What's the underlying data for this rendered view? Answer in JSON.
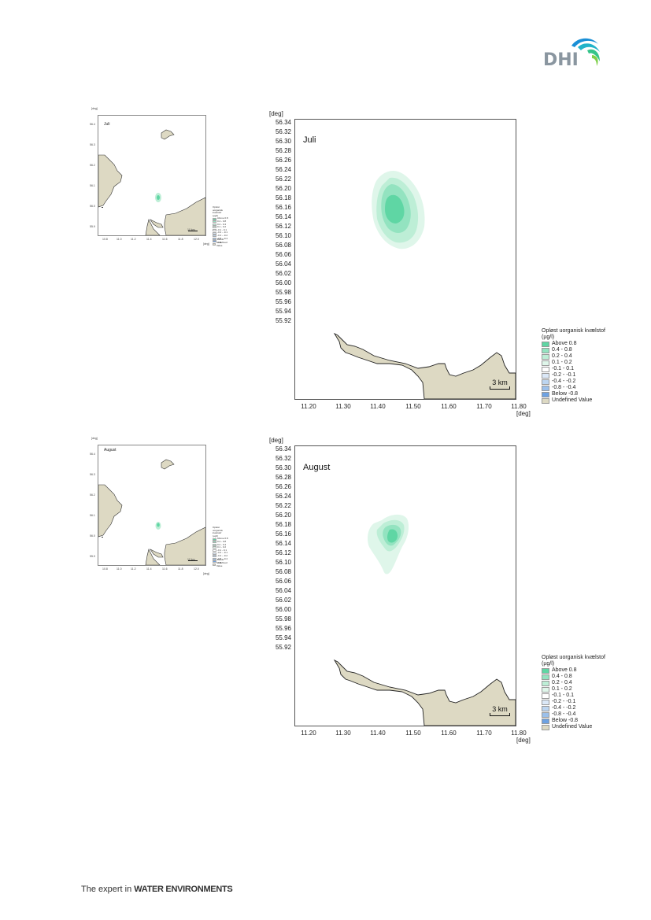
{
  "header": {
    "logo_text": "DHI"
  },
  "footer": {
    "tagline_prefix": "The expert in ",
    "tagline_bold": "WATER ENVIRONMENTS"
  },
  "colors": {
    "land": "#ddd9c3",
    "above_0_8": "#5fd6a4",
    "c04_08": "#93e3c0",
    "c02_04": "#bdeed6",
    "c01_02": "#dff6ea",
    "cm01_01": "#ffffff",
    "cm02_m01": "#dbe8f7",
    "cm04_m02": "#bcd5f0",
    "cm08_m04": "#9cc0ea",
    "below_m08": "#6ea2e2"
  },
  "map_axes": {
    "deg_label": "[deg]",
    "y_ticks": [
      "56.34",
      "56.32",
      "56.30",
      "56.28",
      "56.26",
      "56.24",
      "56.22",
      "56.20",
      "56.18",
      "56.16",
      "56.14",
      "56.12",
      "56.10",
      "56.08",
      "56.06",
      "56.04",
      "56.02",
      "56.00",
      "55.98",
      "55.96",
      "55.94",
      "55.92"
    ],
    "x_ticks": [
      "11.20",
      "11.30",
      "11.40",
      "11.50",
      "11.60",
      "11.70",
      "11.80"
    ],
    "thumb_y_ticks": [
      "56.4",
      "56.3",
      "56.2",
      "56.1",
      "56.0",
      "55.9"
    ],
    "thumb_x_ticks": [
      "10.8",
      "11.0",
      "11.2",
      "11.4",
      "11.6",
      "11.8",
      "12.0"
    ],
    "scale_label": "3 km",
    "thumb_scale_label": "10 km"
  },
  "legend": {
    "title_line1": "Opløst uorganisk kvælstof",
    "title_line2": "(µg/l)",
    "items": [
      {
        "label": "Above  0.8",
        "color": "#5fd6a4"
      },
      {
        "label": "0.4 -  0.8",
        "color": "#93e3c0"
      },
      {
        "label": "0.2 -  0.4",
        "color": "#bdeed6"
      },
      {
        "label": "0.1 -  0.2",
        "color": "#dff6ea"
      },
      {
        "label": "-0.1 -  0.1",
        "color": "#ffffff"
      },
      {
        "label": "-0.2 - -0.1",
        "color": "#dbe8f7"
      },
      {
        "label": "-0.4 - -0.2",
        "color": "#bcd5f0"
      },
      {
        "label": "-0.8 - -0.4",
        "color": "#9cc0ea"
      },
      {
        "label": "Below -0.8",
        "color": "#6ea2e2"
      },
      {
        "label": "Undefined Value",
        "color": "#ddd9c3"
      }
    ]
  },
  "panels": [
    {
      "month": "Juli"
    },
    {
      "month": "August"
    }
  ]
}
